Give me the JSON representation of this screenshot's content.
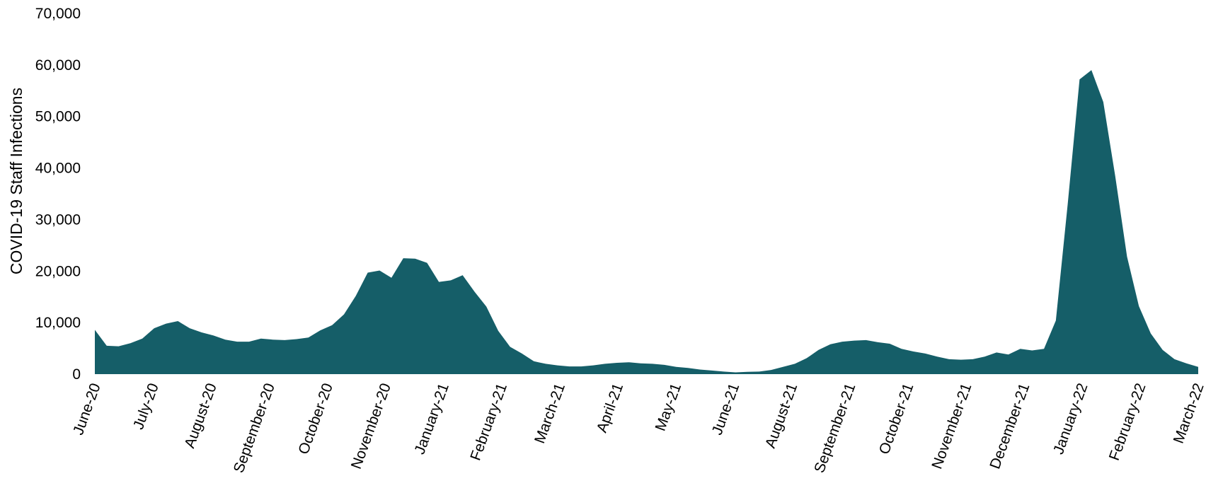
{
  "chart_data": {
    "type": "area",
    "title": "",
    "xlabel": "",
    "ylabel": "COVID-19 Staff Infections",
    "ylim": [
      0,
      70000
    ],
    "y_ticks": [
      "0",
      "10,000",
      "20,000",
      "30,000",
      "40,000",
      "50,000",
      "60,000",
      "70,000"
    ],
    "x_ticks": [
      "June-20",
      "July-20",
      "August-20",
      "September-20",
      "October-20",
      "November-20",
      "January-21",
      "February-21",
      "March-21",
      "April-21",
      "May-21",
      "June-21",
      "August-21",
      "September-21",
      "October-21",
      "November-21",
      "December-21",
      "January-22",
      "February-22",
      "March-22"
    ],
    "grid": false,
    "legend": "none",
    "fill_color": "#155e68",
    "series": [
      {
        "values": [
          8600,
          5500,
          5400,
          6000,
          6900,
          8900,
          9800,
          10300,
          8900,
          8100,
          7500,
          6700,
          6300,
          6300,
          6900,
          6700,
          6600,
          6800,
          7100,
          8500,
          9500,
          11600,
          15200,
          19700,
          20100,
          18700,
          22500,
          22400,
          21600,
          17900,
          18200,
          19200,
          16000,
          13100,
          8400,
          5300,
          4000,
          2500,
          2000,
          1700,
          1500,
          1500,
          1700,
          2000,
          2200,
          2300,
          2100,
          2000,
          1800,
          1400,
          1200,
          900,
          700,
          500,
          350,
          450,
          500,
          800,
          1400,
          2000,
          3100,
          4700,
          5800,
          6300,
          6500,
          6600,
          6200,
          5900,
          4900,
          4400,
          4000,
          3400,
          2900,
          2800,
          2900,
          3400,
          4200,
          3800,
          4900,
          4600,
          4900,
          10400,
          33000,
          57200,
          59000,
          52800,
          38500,
          22800,
          13200,
          7900,
          4700,
          2900,
          2100,
          1400
        ]
      }
    ]
  }
}
